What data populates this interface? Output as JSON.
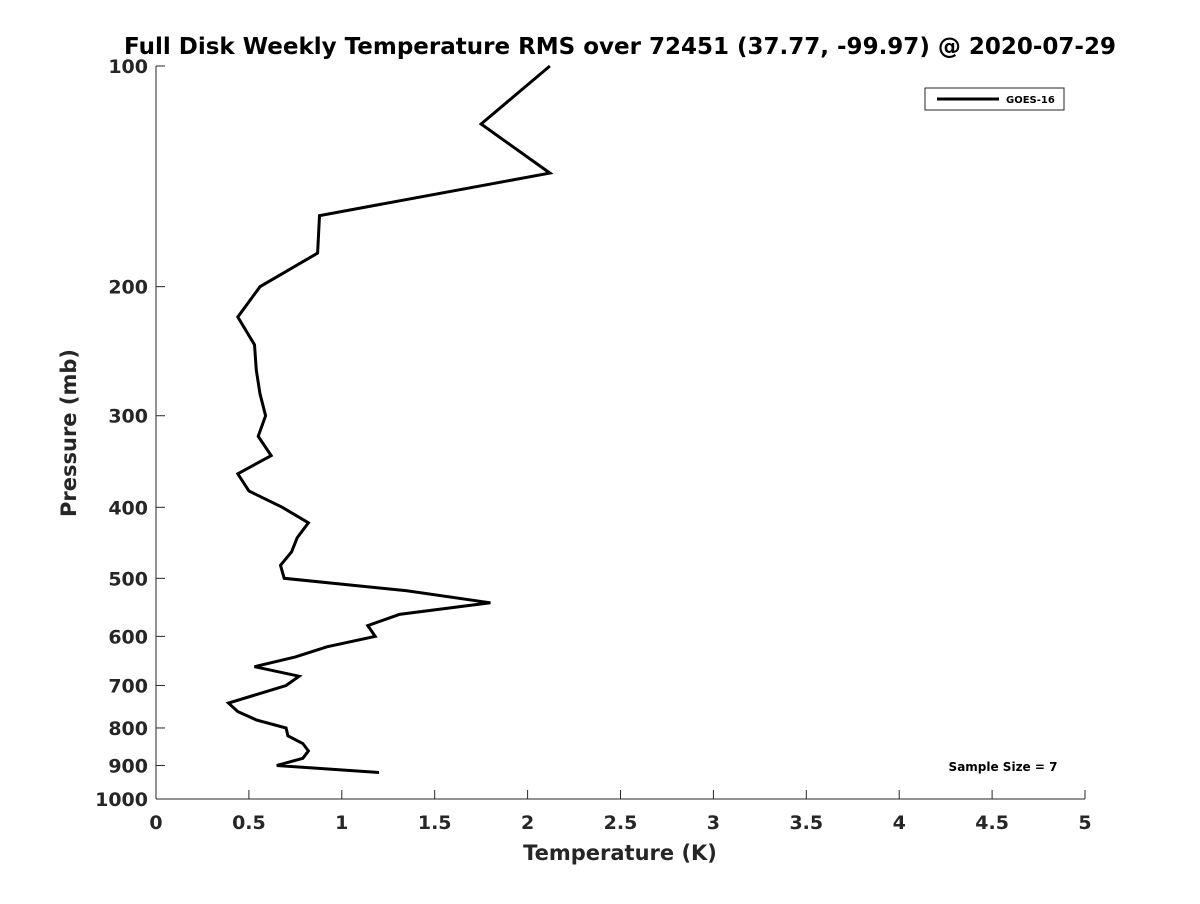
{
  "chart_data": {
    "type": "line",
    "title": "Full Disk Weekly Temperature RMS over 72451 (37.77, -99.97) @ 2020-07-29",
    "xlabel": "Temperature (K)",
    "ylabel": "Pressure (mb)",
    "xlim": [
      0,
      5
    ],
    "ylim": [
      100,
      1000
    ],
    "yscale": "log",
    "y_reversed": true,
    "grid": false,
    "xticks": [
      0,
      0.5,
      1,
      1.5,
      2,
      2.5,
      3,
      3.5,
      4,
      4.5,
      5
    ],
    "xtick_labels": [
      "0",
      "0.5",
      "1",
      "1.5",
      "2",
      "2.5",
      "3",
      "3.5",
      "4",
      "4.5",
      "5"
    ],
    "yticks": [
      100,
      200,
      300,
      400,
      500,
      600,
      700,
      800,
      900,
      1000
    ],
    "ytick_labels": [
      "100",
      "200",
      "300",
      "400",
      "500",
      "600",
      "700",
      "800",
      "900",
      "1000"
    ],
    "legend": {
      "placement": "top-right",
      "entries": [
        "GOES-16"
      ]
    },
    "annotation": "Sample Size = 7",
    "series": [
      {
        "name": "GOES-16",
        "color": "#000000",
        "x": [
          2.12,
          1.75,
          2.12,
          0.88,
          0.87,
          0.56,
          0.44,
          0.53,
          0.54,
          0.56,
          0.59,
          0.55,
          0.62,
          0.44,
          0.5,
          0.68,
          0.82,
          0.76,
          0.73,
          0.67,
          0.69,
          1.35,
          1.8,
          1.31,
          1.14,
          1.18,
          0.92,
          0.75,
          0.53,
          0.77,
          0.7,
          0.39,
          0.44,
          0.54,
          0.7,
          0.71,
          0.79,
          0.82,
          0.79,
          0.65,
          1.2
        ],
        "y": [
          100,
          120,
          140,
          160,
          180,
          200,
          220,
          240,
          260,
          280,
          300,
          320,
          340,
          360,
          380,
          400,
          420,
          440,
          460,
          480,
          500,
          520,
          540,
          560,
          580,
          600,
          620,
          640,
          660,
          680,
          700,
          740,
          760,
          780,
          800,
          820,
          840,
          860,
          880,
          900,
          920
        ]
      }
    ]
  }
}
